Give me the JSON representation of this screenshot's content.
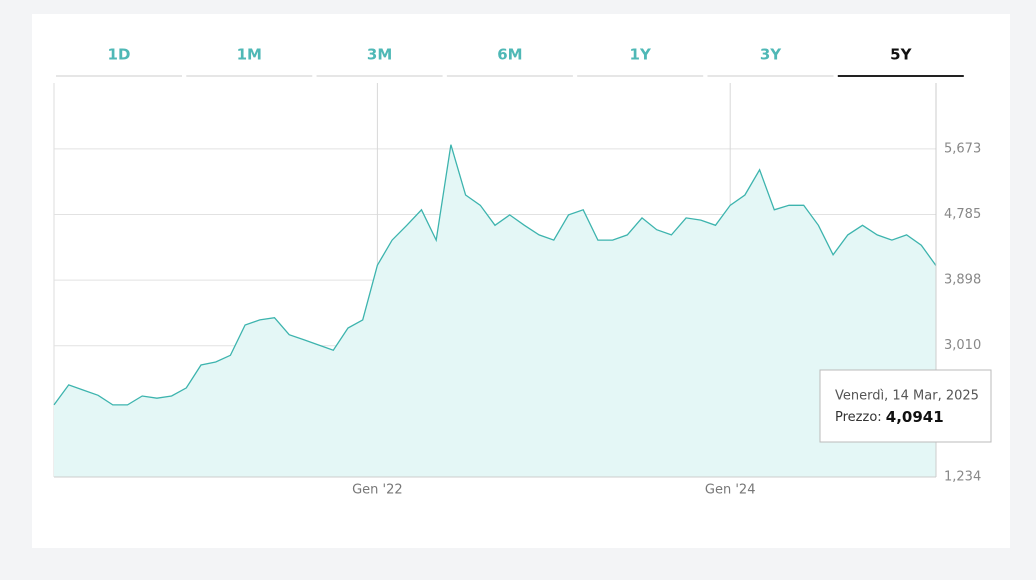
{
  "tabs": [
    "1D",
    "1M",
    "3M",
    "6M",
    "1Y",
    "3Y",
    "5Y"
  ],
  "active_tab": "5Y",
  "chart_data": {
    "type": "area",
    "x": [
      "2020-03",
      "2020-04",
      "2020-05",
      "2020-06",
      "2020-07",
      "2020-08",
      "2020-09",
      "2020-10",
      "2020-11",
      "2020-12",
      "2021-01",
      "2021-02",
      "2021-03",
      "2021-04",
      "2021-05",
      "2021-06",
      "2021-07",
      "2021-08",
      "2021-09",
      "2021-10",
      "2021-11",
      "2021-12",
      "2022-01",
      "2022-02",
      "2022-03",
      "2022-04",
      "2022-05",
      "2022-06",
      "2022-07",
      "2022-08",
      "2022-09",
      "2022-10",
      "2022-11",
      "2022-12",
      "2023-01",
      "2023-02",
      "2023-03",
      "2023-04",
      "2023-05",
      "2023-06",
      "2023-07",
      "2023-08",
      "2023-09",
      "2023-10",
      "2023-11",
      "2023-12",
      "2024-01",
      "2024-02",
      "2024-03",
      "2024-04",
      "2024-05",
      "2024-06",
      "2024-07",
      "2024-08",
      "2024-09",
      "2024-10",
      "2024-11",
      "2024-12",
      "2025-01",
      "2025-02",
      "2025-03"
    ],
    "values": [
      2.21,
      2.48,
      2.41,
      2.34,
      2.21,
      2.21,
      2.33,
      2.3,
      2.33,
      2.44,
      2.75,
      2.79,
      2.88,
      3.29,
      3.36,
      3.39,
      3.16,
      3.09,
      3.02,
      2.95,
      3.25,
      3.36,
      4.1,
      4.44,
      4.64,
      4.85,
      4.44,
      5.73,
      5.05,
      4.91,
      4.64,
      4.78,
      4.64,
      4.51,
      4.44,
      4.78,
      4.85,
      4.44,
      4.44,
      4.51,
      4.74,
      4.58,
      4.51,
      4.74,
      4.71,
      4.64,
      4.91,
      5.05,
      5.39,
      4.85,
      4.91,
      4.91,
      4.64,
      4.24,
      4.51,
      4.64,
      4.51,
      4.44,
      4.51,
      4.37,
      4.0941
    ],
    "color": "#3db4ae",
    "fill_color": "#e4f7f6",
    "xlim": [
      "2020-03",
      "2025-03"
    ],
    "xticks": [
      {
        "value": "2022-01",
        "label": "Gen '22"
      },
      {
        "value": "2024-01",
        "label": "Gen '24"
      }
    ],
    "ylim": [
      1.234,
      6.565
    ],
    "yticks": [
      {
        "value": 1.234,
        "label": "1,234"
      },
      {
        "value": 3.01,
        "label": "3,010"
      },
      {
        "value": 3.898,
        "label": "3,898"
      },
      {
        "value": 4.785,
        "label": "4,785"
      },
      {
        "value": 5.673,
        "label": "5,673"
      }
    ],
    "grid": true,
    "tooltip": {
      "date": "Venerdì, 14 Mar, 2025",
      "label": "Prezzo:",
      "value": "4,0941"
    }
  }
}
